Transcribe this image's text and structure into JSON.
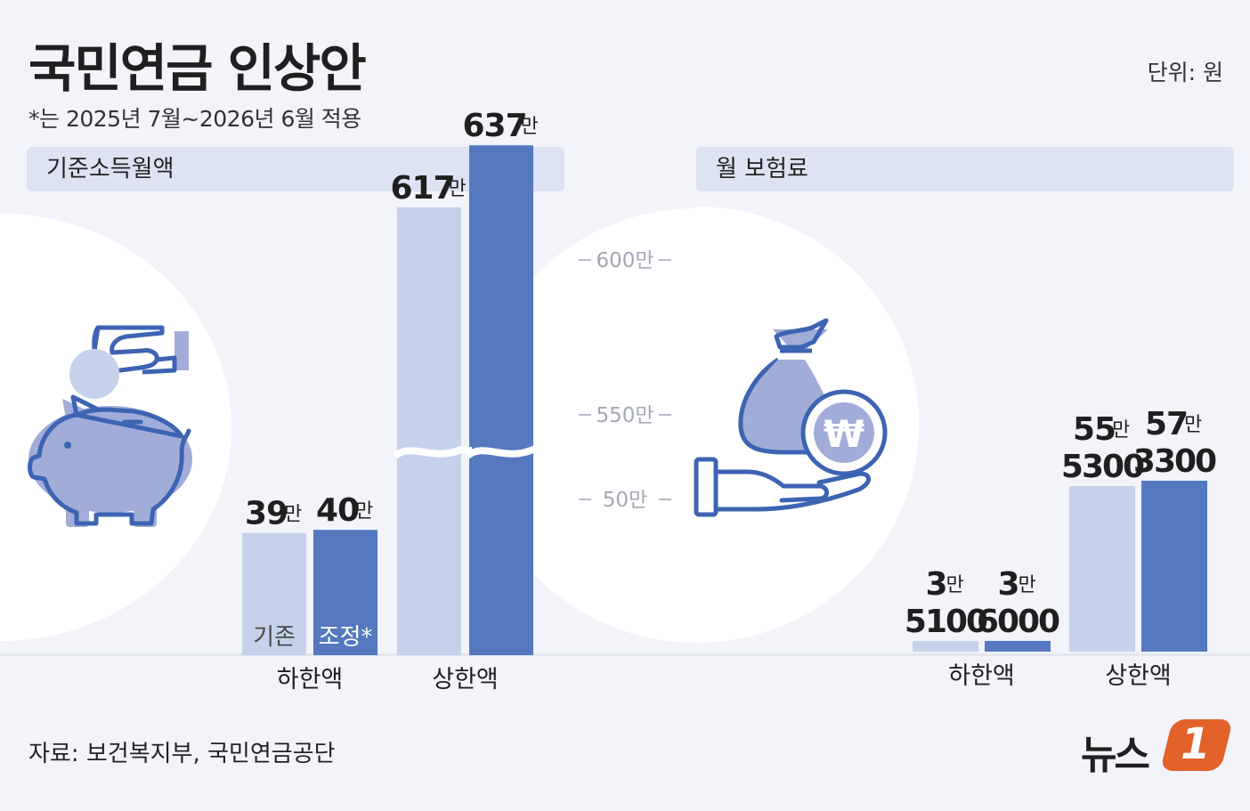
{
  "header": {
    "title": "국민연금 인상안",
    "subtitle": "*는 2025년 7월~2026년 6월 적용",
    "unit": "단위: 원"
  },
  "panels": {
    "left_title": "기준소득월액",
    "right_title": "월 보험료"
  },
  "legend": {
    "existing": "기존",
    "adjusted": "조정*"
  },
  "source": "자료: 보건복지부, 국민연금공단",
  "logo": {
    "text": "뉴스",
    "mark": "1"
  },
  "colors": {
    "existing": "#c5d2ea",
    "adjusted": "#5578bf",
    "background": "#f2f4fa",
    "panel_header": "#dde3f3",
    "icon_fill": "#a2acd8",
    "icon_stroke": "#3d64b3",
    "logo_orange": "#e2622a"
  },
  "icons": {
    "left": "piggy-bank-coin-icon",
    "right": "money-bag-hand-icon"
  },
  "chart_data": [
    {
      "type": "bar",
      "panel": "기준소득월액",
      "categories": [
        "하한액",
        "상한액"
      ],
      "series": [
        {
          "name": "기존",
          "values": [
            390000,
            6170000
          ],
          "labels": [
            [
              "39",
              "만"
            ],
            [
              "617",
              "만"
            ]
          ]
        },
        {
          "name": "조정*",
          "values": [
            400000,
            6370000
          ],
          "labels": [
            [
              "40",
              "만"
            ],
            [
              "637",
              "만"
            ]
          ]
        }
      ],
      "axis_break": true,
      "scale_marks": [
        "600만",
        "550만",
        "50만"
      ]
    },
    {
      "type": "bar",
      "panel": "월 보험료",
      "categories": [
        "하한액",
        "상한액"
      ],
      "series": [
        {
          "name": "기존",
          "values": [
            35100,
            555300
          ],
          "labels": [
            [
              "3",
              "만",
              "5100"
            ],
            [
              "55",
              "만",
              "5300"
            ]
          ]
        },
        {
          "name": "조정*",
          "values": [
            36000,
            573300
          ],
          "labels": [
            [
              "3",
              "만",
              "6000"
            ],
            [
              "57",
              "만",
              "3300"
            ]
          ]
        }
      ]
    }
  ]
}
